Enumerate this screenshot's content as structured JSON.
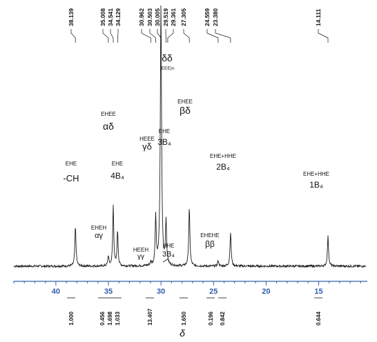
{
  "chart_data": {
    "type": "line",
    "xlabel": "δ",
    "x_reversed": true,
    "xlim": [
      44.0,
      10.5
    ],
    "x_ticks": [
      40,
      35,
      30,
      25,
      20,
      15
    ],
    "peaks": [
      {
        "ppm": 38.139,
        "height": 0.63,
        "width": 0.13,
        "label": [
          "EHE",
          "-CH"
        ]
      },
      {
        "ppm": 35.008,
        "height": 0.16,
        "width": 0.12,
        "label": [
          "EHEH",
          "αγ"
        ]
      },
      {
        "ppm": 34.541,
        "height": 0.97,
        "width": 0.12,
        "label": [
          "EHEE",
          "αδ"
        ]
      },
      {
        "ppm": 34.129,
        "height": 0.56,
        "width": 0.12,
        "label": [
          "EHE",
          "4B₄"
        ]
      },
      {
        "ppm": 30.962,
        "height": 0.05,
        "width": 0.12,
        "label": [
          "HEEH",
          "γγ"
        ]
      },
      {
        "ppm": 30.503,
        "height": 0.79,
        "width": 0.12,
        "label": [
          "HEEE",
          "γδ"
        ]
      },
      {
        "ppm": 30.005,
        "height": 4.2,
        "width": 0.14,
        "label": [
          "δδ",
          "(EEE)n"
        ]
      },
      {
        "ppm": 29.519,
        "height": 0.72,
        "width": 0.12,
        "label": [
          "EHE",
          "3B₄"
        ]
      },
      {
        "ppm": 29.361,
        "height": 0.02,
        "width": 0.12,
        "label": [
          "HHE",
          "3B₄"
        ]
      },
      {
        "ppm": 27.305,
        "height": 0.93,
        "width": 0.13,
        "label": [
          "EHEE",
          "βδ"
        ]
      },
      {
        "ppm": 24.559,
        "height": 0.09,
        "width": 0.12,
        "label": [
          "EHEHE",
          "ββ"
        ]
      },
      {
        "ppm": 23.38,
        "height": 0.55,
        "width": 0.13,
        "label": [
          "EHE+HHE",
          "2B₄"
        ]
      },
      {
        "ppm": 14.111,
        "height": 0.48,
        "width": 0.13,
        "label": [
          "EHE+HHE",
          "1B₄"
        ]
      }
    ],
    "peak_labels_top": [
      "38.139",
      "35.008",
      "34.541",
      "34.129",
      "30.962",
      "30.503",
      "30.005",
      "29.519",
      "29.361",
      "27.305",
      "24.559",
      "23.380",
      "14.111"
    ],
    "integrals": [
      {
        "ppm_center": 38.1,
        "value": "1.000"
      },
      {
        "ppm_center": 35.0,
        "value": "0.456"
      },
      {
        "ppm_center": 34.55,
        "value": "1.698"
      },
      {
        "ppm_center": 34.1,
        "value": "1.033"
      },
      {
        "ppm_center": 30.1,
        "value": "13.407"
      },
      {
        "ppm_center": 27.3,
        "value": "1.650"
      },
      {
        "ppm_center": 24.5,
        "value": "0.196"
      },
      {
        "ppm_center": 23.4,
        "value": "0.842"
      },
      {
        "ppm_center": 14.1,
        "value": "0.644"
      }
    ],
    "colors": {
      "spectrum": "#1a1a1a",
      "axis": "#2e5fa8",
      "text": "#111111"
    }
  }
}
